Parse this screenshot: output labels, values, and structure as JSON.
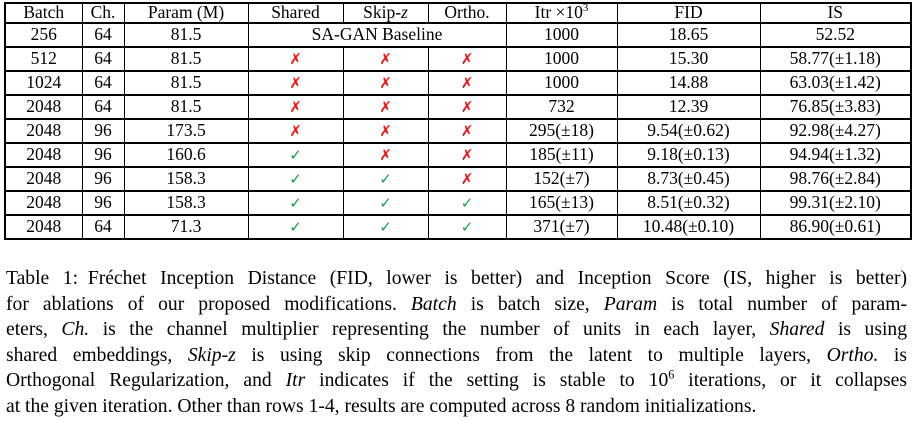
{
  "colors": {
    "text": "#000000",
    "border": "#000000",
    "background": "#ffffff",
    "cross": "#ee1111",
    "check": "#18a24e"
  },
  "table": {
    "marks": {
      "cross_glyph": "✗",
      "check_glyph": "✓"
    },
    "columns": [
      {
        "name": "batch",
        "segments": [
          {
            "t": "Batch"
          }
        ]
      },
      {
        "name": "channels",
        "segments": [
          {
            "t": "Ch."
          }
        ]
      },
      {
        "name": "param-m",
        "segments": [
          {
            "t": "Param (M)"
          }
        ]
      },
      {
        "name": "shared",
        "segments": [
          {
            "t": "Shared"
          }
        ]
      },
      {
        "name": "skip-z",
        "segments": [
          {
            "t": "Skip-"
          },
          {
            "t": "z",
            "style": "italic"
          }
        ]
      },
      {
        "name": "ortho",
        "segments": [
          {
            "t": "Ortho."
          }
        ]
      },
      {
        "name": "itr",
        "segments": [
          {
            "t": "Itr ×10"
          },
          {
            "t": "3",
            "style": "sup"
          }
        ]
      },
      {
        "name": "fid",
        "segments": [
          {
            "t": "FID"
          }
        ]
      },
      {
        "name": "is",
        "segments": [
          {
            "t": "IS"
          }
        ]
      }
    ],
    "rows": [
      {
        "cells": [
          {
            "t": "256"
          },
          {
            "t": "64"
          },
          {
            "t": "81.5"
          },
          {
            "t": "SA-GAN Baseline",
            "colspan": 3,
            "name": "baseline-cell"
          },
          {
            "t": "1000"
          },
          {
            "t": "18.65"
          },
          {
            "t": "52.52"
          }
        ]
      },
      {
        "cells": [
          {
            "t": "512"
          },
          {
            "t": "64"
          },
          {
            "t": "81.5"
          },
          {
            "mark": "cross"
          },
          {
            "mark": "cross"
          },
          {
            "mark": "cross"
          },
          {
            "t": "1000"
          },
          {
            "t": "15.30"
          },
          {
            "t": "58.77(±1.18)"
          }
        ]
      },
      {
        "cells": [
          {
            "t": "1024"
          },
          {
            "t": "64"
          },
          {
            "t": "81.5"
          },
          {
            "mark": "cross"
          },
          {
            "mark": "cross"
          },
          {
            "mark": "cross"
          },
          {
            "t": "1000"
          },
          {
            "t": "14.88"
          },
          {
            "t": "63.03(±1.42)"
          }
        ]
      },
      {
        "cells": [
          {
            "t": "2048"
          },
          {
            "t": "64"
          },
          {
            "t": "81.5"
          },
          {
            "mark": "cross"
          },
          {
            "mark": "cross"
          },
          {
            "mark": "cross"
          },
          {
            "t": "732"
          },
          {
            "t": "12.39"
          },
          {
            "t": "76.85(±3.83)"
          }
        ]
      },
      {
        "cells": [
          {
            "t": "2048"
          },
          {
            "t": "96"
          },
          {
            "t": "173.5"
          },
          {
            "mark": "cross"
          },
          {
            "mark": "cross"
          },
          {
            "mark": "cross"
          },
          {
            "t": "295(±18)"
          },
          {
            "t": "9.54(±0.62)"
          },
          {
            "t": "92.98(±4.27)"
          }
        ]
      },
      {
        "cells": [
          {
            "t": "2048"
          },
          {
            "t": "96"
          },
          {
            "t": "160.6"
          },
          {
            "mark": "check"
          },
          {
            "mark": "cross"
          },
          {
            "mark": "cross"
          },
          {
            "t": "185(±11)"
          },
          {
            "t": "9.18(±0.13)"
          },
          {
            "t": "94.94(±1.32)"
          }
        ]
      },
      {
        "cells": [
          {
            "t": "2048"
          },
          {
            "t": "96"
          },
          {
            "t": "158.3"
          },
          {
            "mark": "check"
          },
          {
            "mark": "check"
          },
          {
            "mark": "cross"
          },
          {
            "t": "152(±7)"
          },
          {
            "t": "8.73(±0.45)"
          },
          {
            "t": "98.76(±2.84)"
          }
        ]
      },
      {
        "cells": [
          {
            "t": "2048"
          },
          {
            "t": "96"
          },
          {
            "t": "158.3"
          },
          {
            "mark": "check"
          },
          {
            "mark": "check"
          },
          {
            "mark": "check"
          },
          {
            "t": "165(±13)"
          },
          {
            "t": "8.51(±0.32)"
          },
          {
            "t": "99.31(±2.10)"
          }
        ]
      },
      {
        "cells": [
          {
            "t": "2048"
          },
          {
            "t": "64"
          },
          {
            "t": "71.3"
          },
          {
            "mark": "check"
          },
          {
            "mark": "check"
          },
          {
            "mark": "check"
          },
          {
            "t": "371(±7)"
          },
          {
            "t": "10.48(±0.10)"
          },
          {
            "t": "86.90(±0.61)"
          }
        ]
      }
    ]
  },
  "caption": {
    "lines": [
      [
        {
          "t": "Table 1: Fréchet Inception Distance (FID, lower is better) and Inception Score (IS, higher is better)"
        }
      ],
      [
        {
          "t": "for ablations of our proposed modifications. "
        },
        {
          "t": "Batch",
          "style": "italic"
        },
        {
          "t": " is batch size, "
        },
        {
          "t": "Param",
          "style": "italic"
        },
        {
          "t": " is total number of param-"
        }
      ],
      [
        {
          "t": "eters, "
        },
        {
          "t": "Ch.",
          "style": "italic"
        },
        {
          "t": " is the channel multiplier representing the number of units in each layer, "
        },
        {
          "t": "Shared",
          "style": "italic"
        },
        {
          "t": " is using"
        }
      ],
      [
        {
          "t": "shared embeddings, "
        },
        {
          "t": "Skip-z",
          "style": "italic"
        },
        {
          "t": " is using skip connections from the latent to multiple layers, "
        },
        {
          "t": "Ortho.",
          "style": "italic"
        },
        {
          "t": " is"
        }
      ],
      [
        {
          "t": "Orthogonal Regularization, and "
        },
        {
          "t": "Itr",
          "style": "italic"
        },
        {
          "t": " indicates if the setting is stable to 10"
        },
        {
          "t": "6",
          "style": "sup"
        },
        {
          "t": " iterations, or it collapses"
        }
      ],
      [
        {
          "t": "at the given iteration. Other than rows 1-4, results are computed across 8 random initializations."
        }
      ]
    ]
  }
}
